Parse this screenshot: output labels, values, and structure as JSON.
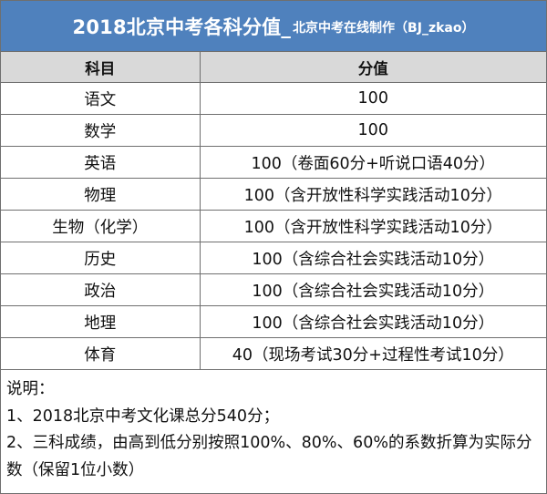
{
  "title": {
    "main": "2018北京中考各科分值_",
    "sub": "北京中考在线制作（BJ_zkao）"
  },
  "table": {
    "headers": [
      "科目",
      "分值"
    ],
    "rows": [
      {
        "subject": "语文",
        "score": "100"
      },
      {
        "subject": "数学",
        "score": "100"
      },
      {
        "subject": "英语",
        "score": "100（卷面60分+听说口语40分）"
      },
      {
        "subject": "物理",
        "score": "100（含开放性科学实践活动10分）"
      },
      {
        "subject": "生物（化学）",
        "score": "100（含开放性科学实践活动10分）"
      },
      {
        "subject": "历史",
        "score": "100（含综合社会实践活动10分）"
      },
      {
        "subject": "政治",
        "score": "100（含综合社会实践活动10分）"
      },
      {
        "subject": "地理",
        "score": "100（含综合社会实践活动10分）"
      },
      {
        "subject": "体育",
        "score": "40（现场考试30分+过程性考试10分）"
      }
    ]
  },
  "notes": {
    "heading": "说明：",
    "item1": "1、2018北京中考文化课总分540分；",
    "item2": "2、三科成绩，由高到低分别按照100%、80%、60%的系数折算为实际分数（保留1位小数）"
  },
  "colors": {
    "title_bg": "#4f81bd",
    "header_bg": "#d9d9d9",
    "border": "#6f6f6f"
  }
}
